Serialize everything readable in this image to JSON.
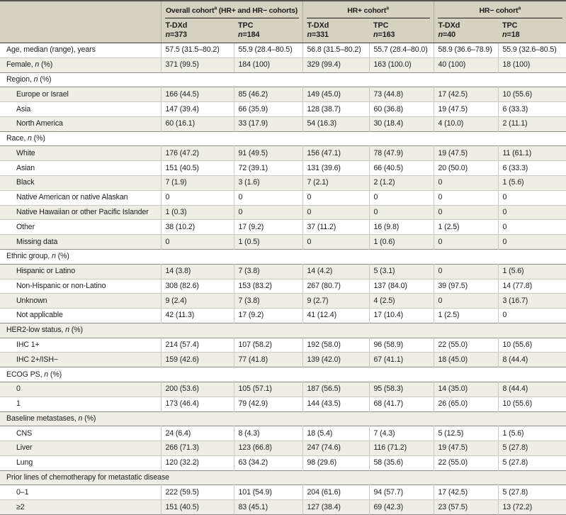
{
  "table": {
    "groups": [
      {
        "label": "Overall cohort",
        "sup": "a",
        "label_suffix": " (HR+ and HR− cohorts)"
      },
      {
        "label": "HR+ cohort",
        "sup": "a",
        "label_suffix": ""
      },
      {
        "label": "HR− cohort",
        "sup": "a",
        "label_suffix": ""
      }
    ],
    "columns": [
      {
        "drug": "T-DXd",
        "n_var": "n",
        "n_rest": "=373"
      },
      {
        "drug": "TPC",
        "n_var": "n",
        "n_rest": "=184"
      },
      {
        "drug": "T-DXd",
        "n_var": "n",
        "n_rest": "=331"
      },
      {
        "drug": "TPC",
        "n_var": "n",
        "n_rest": "=163"
      },
      {
        "drug": "T-DXd",
        "n_var": "n",
        "n_rest": "=40"
      },
      {
        "drug": "TPC",
        "n_var": "n",
        "n_rest": "=18"
      }
    ],
    "rows": [
      {
        "type": "data",
        "indent": false,
        "label": "Age, median (range), years",
        "values": [
          "57.5 (31.5–80.2)",
          "55.9 (28.4–80.5)",
          "56.8 (31.5–80.2)",
          "55.7 (28.4–80.0)",
          "58.9 (36.6–78.9)",
          "55.9 (32.6–80.5)"
        ]
      },
      {
        "type": "data",
        "indent": false,
        "label": "Female, n (%)",
        "values": [
          "371 (99.5)",
          "184 (100)",
          "329 (99.4)",
          "163 (100.0)",
          "40 (100)",
          "18 (100)"
        ]
      },
      {
        "type": "section",
        "label": "Region, n (%)"
      },
      {
        "type": "data",
        "indent": true,
        "label": "Europe or Israel",
        "values": [
          "166 (44.5)",
          "85 (46.2)",
          "149 (45.0)",
          "73 (44.8)",
          "17 (42.5)",
          "10 (55.6)"
        ]
      },
      {
        "type": "data",
        "indent": true,
        "label": "Asia",
        "values": [
          "147 (39.4)",
          "66 (35.9)",
          "128 (38.7)",
          "60 (36.8)",
          "19 (47.5)",
          "6 (33.3)"
        ]
      },
      {
        "type": "data",
        "indent": true,
        "label": "North America",
        "values": [
          "60 (16.1)",
          "33 (17.9)",
          "54 (16.3)",
          "30 (18.4)",
          "4 (10.0)",
          "2 (11.1)"
        ]
      },
      {
        "type": "section",
        "label": "Race, n (%)"
      },
      {
        "type": "data",
        "indent": true,
        "label": "White",
        "values": [
          "176 (47.2)",
          "91 (49.5)",
          "156 (47.1)",
          "78 (47.9)",
          "19 (47.5)",
          "11 (61.1)"
        ]
      },
      {
        "type": "data",
        "indent": true,
        "label": "Asian",
        "values": [
          "151 (40.5)",
          "72 (39.1)",
          "131 (39.6)",
          "66 (40.5)",
          "20 (50.0)",
          "6 (33.3)"
        ]
      },
      {
        "type": "data",
        "indent": true,
        "label": "Black",
        "values": [
          "7 (1.9)",
          "3 (1.6)",
          "7 (2.1)",
          "2 (1.2)",
          "0",
          "1 (5.6)"
        ]
      },
      {
        "type": "data",
        "indent": true,
        "label": "Native American or native Alaskan",
        "values": [
          "0",
          "0",
          "0",
          "0",
          "0",
          "0"
        ]
      },
      {
        "type": "data",
        "indent": true,
        "label": "Native Hawaiian or other Pacific Islander",
        "values": [
          "1 (0.3)",
          "0",
          "0",
          "0",
          "0",
          "0"
        ]
      },
      {
        "type": "data",
        "indent": true,
        "label": "Other",
        "values": [
          "38 (10.2)",
          "17 (9.2)",
          "37 (11.2)",
          "16 (9.8)",
          "1 (2.5)",
          "0"
        ]
      },
      {
        "type": "data",
        "indent": true,
        "label": "Missing data",
        "values": [
          "0",
          "1 (0.5)",
          "0",
          "1 (0.6)",
          "0",
          "0"
        ]
      },
      {
        "type": "section",
        "label": "Ethnic group, n (%)"
      },
      {
        "type": "data",
        "indent": true,
        "label": "Hispanic or Latino",
        "values": [
          "14 (3.8)",
          "7 (3.8)",
          "14 (4.2)",
          "5 (3.1)",
          "0",
          "1 (5.6)"
        ]
      },
      {
        "type": "data",
        "indent": true,
        "label": "Non-Hispanic or non-Latino",
        "values": [
          "308 (82.6)",
          "153 (83.2)",
          "267 (80.7)",
          "137 (84.0)",
          "39 (97.5)",
          "14 (77.8)"
        ]
      },
      {
        "type": "data",
        "indent": true,
        "label": "Unknown",
        "values": [
          "9 (2.4)",
          "7 (3.8)",
          "9 (2.7)",
          "4 (2.5)",
          "0",
          "3 (16.7)"
        ]
      },
      {
        "type": "data",
        "indent": true,
        "label": "Not applicable",
        "values": [
          "42 (11.3)",
          "17 (9.2)",
          "41 (12.4)",
          "17 (10.4)",
          "1 (2.5)",
          "0"
        ]
      },
      {
        "type": "section",
        "label": "HER2-low status, n (%)"
      },
      {
        "type": "data",
        "indent": true,
        "label": "IHC 1+",
        "values": [
          "214 (57.4)",
          "107 (58.2)",
          "192 (58.0)",
          "96 (58.9)",
          "22 (55.0)",
          "10 (55.6)"
        ]
      },
      {
        "type": "data",
        "indent": true,
        "label": "IHC 2+/ISH−",
        "values": [
          "159 (42.6)",
          "77 (41.8)",
          "139 (42.0)",
          "67 (41.1)",
          "18 (45.0)",
          "8 (44.4)"
        ]
      },
      {
        "type": "section",
        "label": "ECOG PS, n (%)"
      },
      {
        "type": "data",
        "indent": true,
        "label": "0",
        "values": [
          "200 (53.6)",
          "105 (57.1)",
          "187 (56.5)",
          "95 (58.3)",
          "14 (35.0)",
          "8 (44.4)"
        ]
      },
      {
        "type": "data",
        "indent": true,
        "label": "1",
        "values": [
          "173 (46.4)",
          "79 (42.9)",
          "144 (43.5)",
          "68 (41.7)",
          "26 (65.0)",
          "10 (55.6)"
        ]
      },
      {
        "type": "section",
        "label": "Baseline metastases, n (%)"
      },
      {
        "type": "data",
        "indent": true,
        "label": "CNS",
        "values": [
          "24 (6.4)",
          "8 (4.3)",
          "18 (5.4)",
          "7 (4.3)",
          "5 (12.5)",
          "1 (5.6)"
        ]
      },
      {
        "type": "data",
        "indent": true,
        "label": "Liver",
        "values": [
          "266 (71.3)",
          "123 (66.8)",
          "247 (74.6)",
          "116 (71.2)",
          "19 (47.5)",
          "5 (27.8)"
        ]
      },
      {
        "type": "data",
        "indent": true,
        "label": "Lung",
        "values": [
          "120 (32.2)",
          "63 (34.2)",
          "98 (29.6)",
          "58 (35.6)",
          "22 (55.0)",
          "5 (27.8)"
        ]
      },
      {
        "type": "section",
        "label": "Prior lines of chemotherapy for metastatic disease"
      },
      {
        "type": "data",
        "indent": true,
        "label": "0–1",
        "values": [
          "222 (59.5)",
          "101 (54.9)",
          "204 (61.6)",
          "94 (57.7)",
          "17 (42.5)",
          "5 (27.8)"
        ]
      },
      {
        "type": "data",
        "indent": true,
        "label": "≥2",
        "values": [
          "151 (40.5)",
          "83 (45.1)",
          "127 (38.4)",
          "69 (42.3)",
          "23 (57.5)",
          "13 (72.2)"
        ]
      }
    ]
  },
  "colors": {
    "header_band": "#d5d2c1",
    "stripe": "#efeee4",
    "top_rule": "#53524b",
    "section_rule": "#8f8e88",
    "row_rule": "#cbcac4"
  }
}
